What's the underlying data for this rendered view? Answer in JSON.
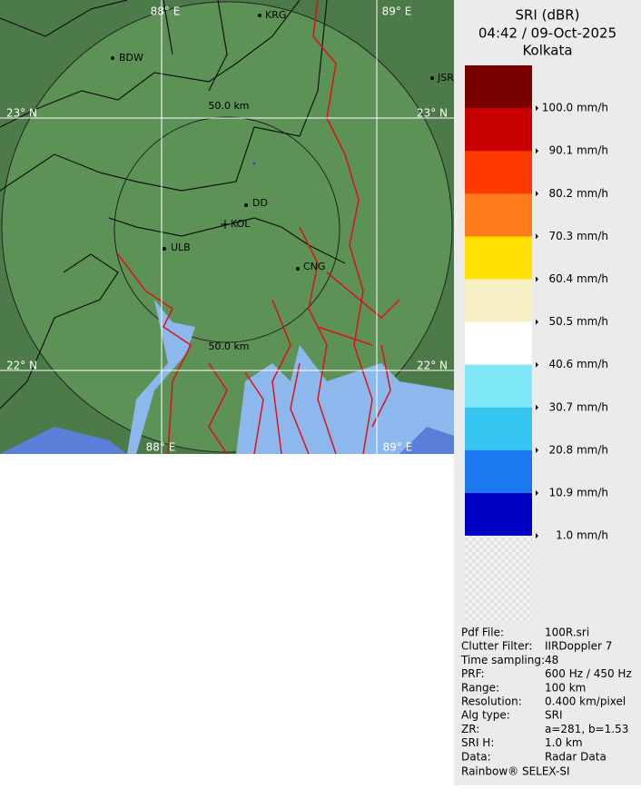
{
  "header": {
    "lines": [
      "SRI (dBR)",
      "04:42 / 09-Oct-2025",
      "Kolkata"
    ]
  },
  "map": {
    "grid_labels": [
      "88° E",
      "89° E",
      "23° N",
      "23° N",
      "22° N",
      "22° N",
      "88° E",
      "89° E"
    ],
    "range_labels": [
      "50.0 km",
      "50.0 km"
    ],
    "cities": [
      "KRG",
      "BDW",
      "JSR",
      "DD",
      "KOL",
      "ULB",
      "CNG"
    ]
  },
  "legend": {
    "items": [
      {
        "color": "#7a0000",
        "label": "100.0 mm/h"
      },
      {
        "color": "#c80000",
        "label": "90.1 mm/h"
      },
      {
        "color": "#ff3a00",
        "label": "80.2 mm/h"
      },
      {
        "color": "#ff7a1a",
        "label": "70.3 mm/h"
      },
      {
        "color": "#ffe000",
        "label": "60.4 mm/h"
      },
      {
        "color": "#f8f0c4",
        "label": "50.5 mm/h"
      },
      {
        "color": "#ffffff",
        "label": "40.6 mm/h"
      },
      {
        "color": "#7ee8f8",
        "label": "30.7 mm/h"
      },
      {
        "color": "#36c4f0",
        "label": "20.8 mm/h"
      },
      {
        "color": "#1a78f0",
        "label": "10.9 mm/h"
      },
      {
        "color": "#0000c4",
        "label": "1.0 mm/h"
      }
    ]
  },
  "info": {
    "rows": [
      [
        "Pdf File:",
        "100R.sri"
      ],
      [
        "Clutter Filter:",
        "IIRDoppler 7"
      ],
      [
        "Time sampling:",
        "48"
      ],
      [
        "PRF:",
        "600 Hz / 450 Hz"
      ],
      [
        "Range:",
        "100 km"
      ],
      [
        "Resolution:",
        "0.400 km/pixel"
      ],
      [
        "Alg type:",
        "SRI"
      ],
      [
        "ZR:",
        "a=281, b=1.53"
      ],
      [
        "SRI H:",
        "1.0 km"
      ],
      [
        "Data:",
        "Radar Data"
      ]
    ],
    "footer": "Rainbow® SELEX-SI"
  }
}
